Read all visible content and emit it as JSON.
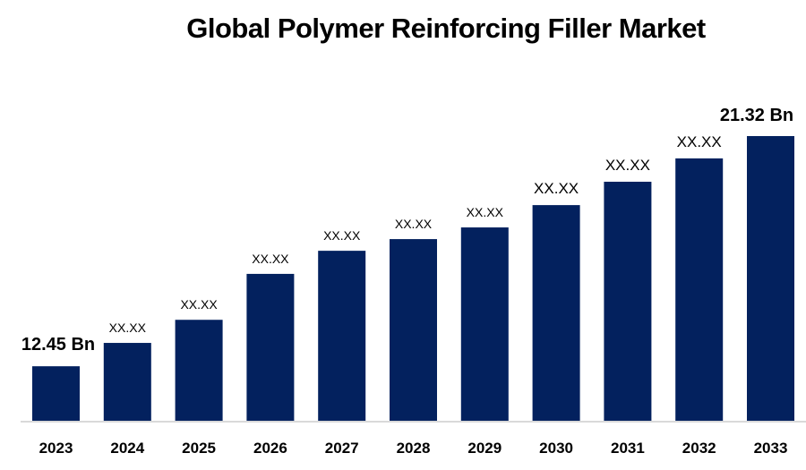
{
  "chart_data": {
    "type": "bar",
    "title": "Global Polymer Reinforcing Filler Market",
    "xlabel": "",
    "ylabel": "",
    "categories": [
      "2023",
      "2024",
      "2025",
      "2026",
      "2027",
      "2028",
      "2029",
      "2030",
      "2031",
      "2032",
      "2033"
    ],
    "values": [
      12.45,
      13.35,
      14.24,
      16.01,
      16.9,
      17.35,
      17.8,
      18.66,
      19.56,
      20.46,
      21.32
    ],
    "data_labels": [
      "12.45 Bn",
      "XX.XX",
      "XX.XX",
      "XX.XX",
      "XX.XX",
      "XX.XX",
      "XX.XX",
      "XX.XX",
      "XX.XX",
      "XX.XX",
      "21.32 Bn"
    ],
    "ylim": [
      10.35,
      22
    ],
    "grid": false,
    "legend": "none",
    "bar_color": "#03215E",
    "axis_color": "#D9D9D9"
  }
}
